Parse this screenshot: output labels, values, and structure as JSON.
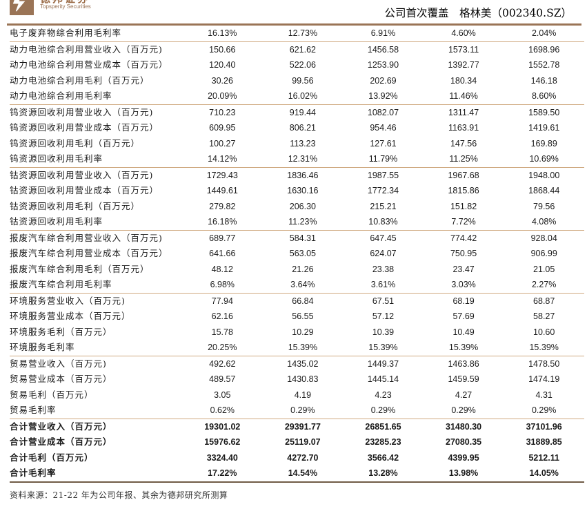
{
  "header": {
    "brand_cn": "德邦证券",
    "brand_en": "Topsperity Securities",
    "title": "公司首次覆盖　格林美（002340.SZ）",
    "accent_color": "#9a7456"
  },
  "table": {
    "rows": [
      {
        "label": "电子废弃物综合利用毛利率",
        "values": [
          "16.13%",
          "12.73%",
          "6.91%",
          "4.60%",
          "2.04%"
        ],
        "sep": true
      },
      {
        "label": "动力电池综合利用营业收入（百万元)",
        "values": [
          "150.66",
          "621.62",
          "1456.58",
          "1573.11",
          "1698.96"
        ]
      },
      {
        "label": "动力电池综合利用营业成本（百万元）",
        "values": [
          "120.40",
          "522.06",
          "1253.90",
          "1392.77",
          "1552.78"
        ]
      },
      {
        "label": "动力电池综合利用毛利（百万元）",
        "values": [
          "30.26",
          "99.56",
          "202.69",
          "180.34",
          "146.18"
        ]
      },
      {
        "label": "动力电池综合利用毛利率",
        "values": [
          "20.09%",
          "16.02%",
          "13.92%",
          "11.46%",
          "8.60%"
        ],
        "sep": true
      },
      {
        "label": "钨资源回收利用营业收入（百万元)",
        "values": [
          "710.23",
          "919.44",
          "1082.07",
          "1311.47",
          "1589.50"
        ]
      },
      {
        "label": "钨资源回收利用营业成本（百万元）",
        "values": [
          "609.95",
          "806.21",
          "954.46",
          "1163.91",
          "1419.61"
        ]
      },
      {
        "label": "钨资源回收利用毛利（百万元）",
        "values": [
          "100.27",
          "113.23",
          "127.61",
          "147.56",
          "169.89"
        ]
      },
      {
        "label": "钨资源回收利用毛利率",
        "values": [
          "14.12%",
          "12.31%",
          "11.79%",
          "11.25%",
          "10.69%"
        ],
        "sep": true
      },
      {
        "label": "钴资源回收利用营业收入（百万元)",
        "values": [
          "1729.43",
          "1836.46",
          "1987.55",
          "1967.68",
          "1948.00"
        ]
      },
      {
        "label": "钴资源回收利用营业成本（百万元）",
        "values": [
          "1449.61",
          "1630.16",
          "1772.34",
          "1815.86",
          "1868.44"
        ]
      },
      {
        "label": "钴资源回收利用毛利（百万元）",
        "values": [
          "279.82",
          "206.30",
          "215.21",
          "151.82",
          "79.56"
        ]
      },
      {
        "label": "钴资源回收利用毛利率",
        "values": [
          "16.18%",
          "11.23%",
          "10.83%",
          "7.72%",
          "4.08%"
        ],
        "sep": true
      },
      {
        "label": "报废汽车综合利用营业收入（百万元)",
        "values": [
          "689.77",
          "584.31",
          "647.45",
          "774.42",
          "928.04"
        ]
      },
      {
        "label": "报废汽车综合利用营业成本（百万元）",
        "values": [
          "641.66",
          "563.05",
          "624.07",
          "750.95",
          "906.99"
        ]
      },
      {
        "label": "报废汽车综合利用毛利（百万元）",
        "values": [
          "48.12",
          "21.26",
          "23.38",
          "23.47",
          "21.05"
        ]
      },
      {
        "label": "报废汽车综合利用毛利率",
        "values": [
          "6.98%",
          "3.64%",
          "3.61%",
          "3.03%",
          "2.27%"
        ],
        "sep": true
      },
      {
        "label": "环境服务营业收入（百万元)",
        "values": [
          "77.94",
          "66.84",
          "67.51",
          "68.19",
          "68.87"
        ]
      },
      {
        "label": "环境服务营业成本（百万元）",
        "values": [
          "62.16",
          "56.55",
          "57.12",
          "57.69",
          "58.27"
        ]
      },
      {
        "label": "环境服务毛利（百万元）",
        "values": [
          "15.78",
          "10.29",
          "10.39",
          "10.49",
          "10.60"
        ]
      },
      {
        "label": "环境服务毛利率",
        "values": [
          "20.25%",
          "15.39%",
          "15.39%",
          "15.39%",
          "15.39%"
        ],
        "sep": true
      },
      {
        "label": "贸易营业收入（百万元)",
        "values": [
          "492.62",
          "1435.02",
          "1449.37",
          "1463.86",
          "1478.50"
        ]
      },
      {
        "label": "贸易营业成本（百万元）",
        "values": [
          "489.57",
          "1430.83",
          "1445.14",
          "1459.59",
          "1474.19"
        ]
      },
      {
        "label": "贸易毛利（百万元）",
        "values": [
          "3.05",
          "4.19",
          "4.23",
          "4.27",
          "4.31"
        ]
      },
      {
        "label": "贸易毛利率",
        "values": [
          "0.62%",
          "0.29%",
          "0.29%",
          "0.29%",
          "0.29%"
        ],
        "sep": true
      },
      {
        "label": "合计营业收入（百万元）",
        "values": [
          "19301.02",
          "29391.77",
          "26851.65",
          "31480.30",
          "37101.96"
        ],
        "bold": true
      },
      {
        "label": "合计营业成本（百万元）",
        "values": [
          "15976.62",
          "25119.07",
          "23285.23",
          "27080.35",
          "31889.85"
        ],
        "bold": true
      },
      {
        "label": "合计毛利（百万元）",
        "values": [
          "3324.40",
          "4272.70",
          "3566.42",
          "4399.95",
          "5212.11"
        ],
        "bold": true
      },
      {
        "label": "合计毛利率",
        "values": [
          "17.22%",
          "14.54%",
          "13.28%",
          "13.98%",
          "14.05%"
        ],
        "bold": true,
        "last": true
      }
    ]
  },
  "footer": {
    "source": "资料来源：21-22 年为公司年报、其余为德邦研究所测算"
  }
}
